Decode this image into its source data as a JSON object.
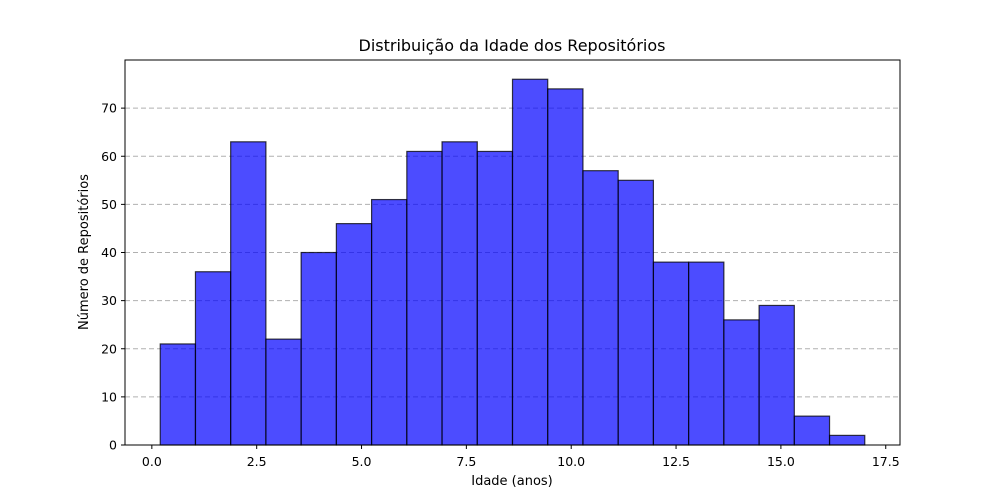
{
  "chart_data": {
    "type": "bar",
    "title": "Distribuição da Idade dos Repositórios",
    "xlabel": "Idade (anos)",
    "ylabel": "Número de Repositórios",
    "bin_edges": [
      0.2,
      1.04,
      1.88,
      2.72,
      3.56,
      4.4,
      5.24,
      6.08,
      6.92,
      7.76,
      8.6,
      9.44,
      10.28,
      11.12,
      11.96,
      12.8,
      13.64,
      14.48,
      15.32,
      16.16,
      17.0
    ],
    "values": [
      21,
      36,
      63,
      22,
      40,
      46,
      51,
      61,
      63,
      61,
      76,
      74,
      57,
      55,
      38,
      38,
      26,
      29,
      6,
      2
    ],
    "xlim": [
      -0.64,
      17.84
    ],
    "ylim": [
      0,
      80
    ],
    "x_ticks": [
      0.0,
      2.5,
      5.0,
      7.5,
      10.0,
      12.5,
      15.0,
      17.5
    ],
    "x_tick_labels": [
      "0.0",
      "2.5",
      "5.0",
      "7.5",
      "10.0",
      "12.5",
      "15.0",
      "17.5"
    ],
    "y_ticks": [
      0,
      10,
      20,
      30,
      40,
      50,
      60,
      70
    ],
    "y_tick_labels": [
      "0",
      "10",
      "20",
      "30",
      "40",
      "50",
      "60",
      "70"
    ],
    "grid": "y-dashed",
    "bar_color": "#0000ff",
    "bar_opacity": 0.7,
    "edge_color": "#000000"
  }
}
